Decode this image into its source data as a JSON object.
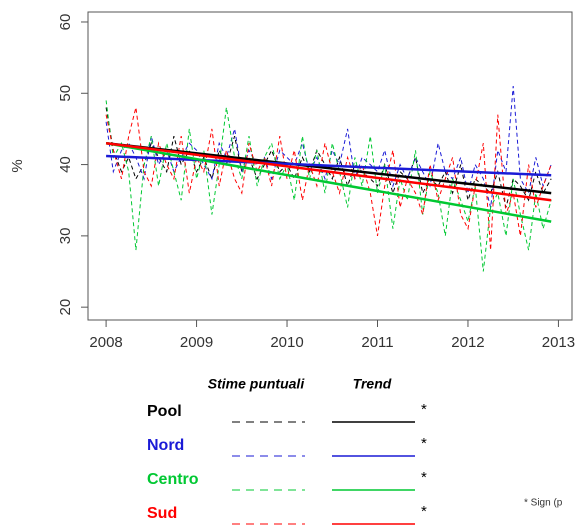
{
  "chart_data": {
    "type": "line",
    "y_label": "%",
    "xlim": [
      2007.8,
      2013.15
    ],
    "ylim": [
      18.2,
      61.4
    ],
    "xticks": [
      2008,
      2009,
      2010,
      2011,
      2012,
      2013
    ],
    "yticks": [
      20,
      30,
      40,
      50,
      60
    ],
    "x": [
      2008,
      2008.08,
      2008.17,
      2008.25,
      2008.33,
      2008.42,
      2008.5,
      2008.58,
      2008.67,
      2008.75,
      2008.83,
      2008.92,
      2009,
      2009.08,
      2009.17,
      2009.25,
      2009.33,
      2009.42,
      2009.5,
      2009.58,
      2009.67,
      2009.75,
      2009.83,
      2009.92,
      2010,
      2010.08,
      2010.17,
      2010.25,
      2010.33,
      2010.42,
      2010.5,
      2010.58,
      2010.67,
      2010.75,
      2010.83,
      2010.92,
      2011,
      2011.08,
      2011.17,
      2011.25,
      2011.33,
      2011.42,
      2011.5,
      2011.58,
      2011.67,
      2011.75,
      2011.83,
      2011.92,
      2012,
      2012.08,
      2012.17,
      2012.25,
      2012.33,
      2012.42,
      2012.5,
      2012.58,
      2012.67,
      2012.75,
      2012.83,
      2012.92
    ],
    "trend_x": [
      2008,
      2012.92
    ],
    "legend_headers": [
      "Stime puntuali",
      "Trend"
    ],
    "footnote": "* Sign  (p",
    "series": [
      {
        "name": "Pool",
        "color": "#000000",
        "significance": "*",
        "trend": [
          43,
          36
        ],
        "values": [
          48,
          42,
          39,
          41,
          38,
          40,
          43,
          41,
          39,
          44,
          40,
          42,
          39,
          41,
          38,
          42,
          40,
          44,
          39,
          41,
          38,
          40,
          42,
          39,
          40,
          38,
          41,
          39,
          42,
          40,
          38,
          41,
          37,
          40,
          39,
          38,
          37,
          40,
          36,
          39,
          38,
          41,
          36,
          38,
          37,
          39,
          36,
          40,
          35,
          38,
          37,
          36,
          39,
          34,
          38,
          37,
          35,
          39,
          36,
          38
        ]
      },
      {
        "name": "Nord",
        "color": "#1a1ad6",
        "significance": "*",
        "trend": [
          41.2,
          38.5
        ],
        "values": [
          46,
          39,
          42,
          43,
          41,
          38,
          44,
          40,
          42,
          39,
          41,
          43,
          42,
          40,
          38,
          43,
          41,
          45,
          39,
          42,
          40,
          41,
          38,
          42,
          41,
          40,
          43,
          39,
          41,
          38,
          42,
          40,
          45,
          38,
          41,
          40,
          39,
          42,
          37,
          40,
          38,
          41,
          39,
          37,
          43,
          39,
          38,
          41,
          36,
          40,
          38,
          34,
          42,
          39,
          51,
          38,
          36,
          41,
          37,
          40
        ]
      },
      {
        "name": "Centro",
        "color": "#00c832",
        "significance": "*",
        "trend": [
          43,
          32
        ],
        "values": [
          49,
          41,
          43,
          39,
          28,
          40,
          44,
          37,
          43,
          39,
          35,
          45,
          38,
          42,
          33,
          40,
          48,
          41,
          38,
          44,
          37,
          41,
          43,
          38,
          40,
          35,
          44,
          38,
          42,
          36,
          43,
          39,
          34,
          41,
          37,
          44,
          36,
          40,
          31,
          38,
          35,
          42,
          33,
          39,
          36,
          30,
          38,
          35,
          32,
          37,
          25,
          34,
          36,
          30,
          38,
          33,
          28,
          36,
          31,
          35
        ]
      },
      {
        "name": "Sud",
        "color": "#ff0000",
        "significance": "*",
        "trend": [
          43,
          35
        ],
        "values": [
          47,
          42,
          38,
          44,
          48,
          39,
          37,
          43,
          40,
          38,
          44,
          36,
          41,
          39,
          45,
          37,
          42,
          38,
          36,
          43,
          39,
          41,
          37,
          44,
          38,
          42,
          35,
          40,
          37,
          43,
          39,
          36,
          41,
          38,
          40,
          36,
          30,
          37,
          42,
          34,
          38,
          36,
          33,
          40,
          35,
          38,
          41,
          33,
          31,
          37,
          43,
          28,
          47,
          33,
          36,
          30,
          40,
          34,
          37,
          40
        ]
      }
    ]
  }
}
